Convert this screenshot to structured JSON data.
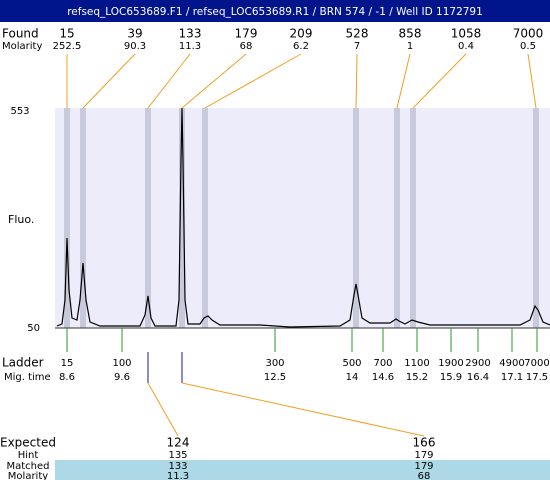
{
  "header": {
    "title": "refseq_LOC653689.F1 / refseq_LOC653689.R1 / BRN 574 / -1 / Well ID 1172791"
  },
  "found": {
    "label": "Found",
    "sublabel": "Molarity",
    "peaks": [
      {
        "size": "15",
        "molarity": "252.5"
      },
      {
        "size": "39",
        "molarity": "90.3"
      },
      {
        "size": "133",
        "molarity": "11.3"
      },
      {
        "size": "179",
        "molarity": "68"
      },
      {
        "size": "209",
        "molarity": "6.2"
      },
      {
        "size": "528",
        "molarity": "7"
      },
      {
        "size": "858",
        "molarity": "1"
      },
      {
        "size": "1058",
        "molarity": "0.4"
      },
      {
        "size": "7000",
        "molarity": "0.5"
      }
    ]
  },
  "axis": {
    "label": "Fluo.",
    "max": "553",
    "min": "50"
  },
  "ladder": {
    "label": "Ladder",
    "sublabel": "Mig. time",
    "points": [
      {
        "size": "15",
        "time": "8.6"
      },
      {
        "size": "100",
        "time": "9.6"
      },
      {
        "size": "300",
        "time": "12.5"
      },
      {
        "size": "500",
        "time": "14"
      },
      {
        "size": "700",
        "time": "14.6"
      },
      {
        "size": "1100",
        "time": "15.2"
      },
      {
        "size": "1900",
        "time": "15.9"
      },
      {
        "size": "2900",
        "time": "16.4"
      },
      {
        "size": "4900",
        "time": "17.1"
      },
      {
        "size": "7000",
        "time": "17.5"
      }
    ]
  },
  "expected": {
    "labels": [
      "Expected",
      "Hint",
      "Matched",
      "Molarity"
    ],
    "columns": [
      {
        "expected": "124",
        "hint": "135",
        "matched": "133",
        "molarity": "11.3"
      },
      {
        "expected": "166",
        "hint": "179",
        "matched": "179",
        "molarity": "68"
      }
    ]
  }
}
